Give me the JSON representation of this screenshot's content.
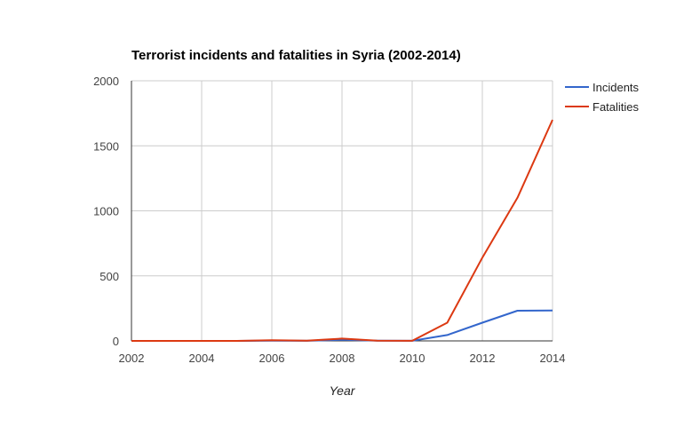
{
  "chart_data": {
    "type": "line",
    "title": "Terrorist incidents and fatalities in Syria (2002-2014)",
    "xlabel": "Year",
    "ylabel": "",
    "x": [
      2002,
      2003,
      2004,
      2005,
      2006,
      2007,
      2008,
      2009,
      2010,
      2011,
      2012,
      2013,
      2014
    ],
    "xlim": [
      2002,
      2014
    ],
    "ylim": [
      0,
      2000
    ],
    "x_ticks": [
      "2002",
      "2004",
      "2006",
      "2008",
      "2010",
      "2012",
      "2014"
    ],
    "x_tick_values": [
      2002,
      2004,
      2006,
      2008,
      2010,
      2012,
      2014
    ],
    "y_ticks": [
      "0",
      "500",
      "1000",
      "1500",
      "2000"
    ],
    "y_tick_values": [
      0,
      500,
      1000,
      1500,
      2000
    ],
    "grid": true,
    "legend_position": "right",
    "series": [
      {
        "name": "Incidents",
        "color": "#3366cc",
        "values": [
          0,
          0,
          0,
          0,
          2,
          1,
          8,
          2,
          1,
          45,
          140,
          232,
          234
        ]
      },
      {
        "name": "Fatalities",
        "color": "#dc3912",
        "values": [
          0,
          0,
          0,
          0,
          5,
          2,
          18,
          2,
          1,
          140,
          640,
          1100,
          1700
        ]
      }
    ]
  }
}
